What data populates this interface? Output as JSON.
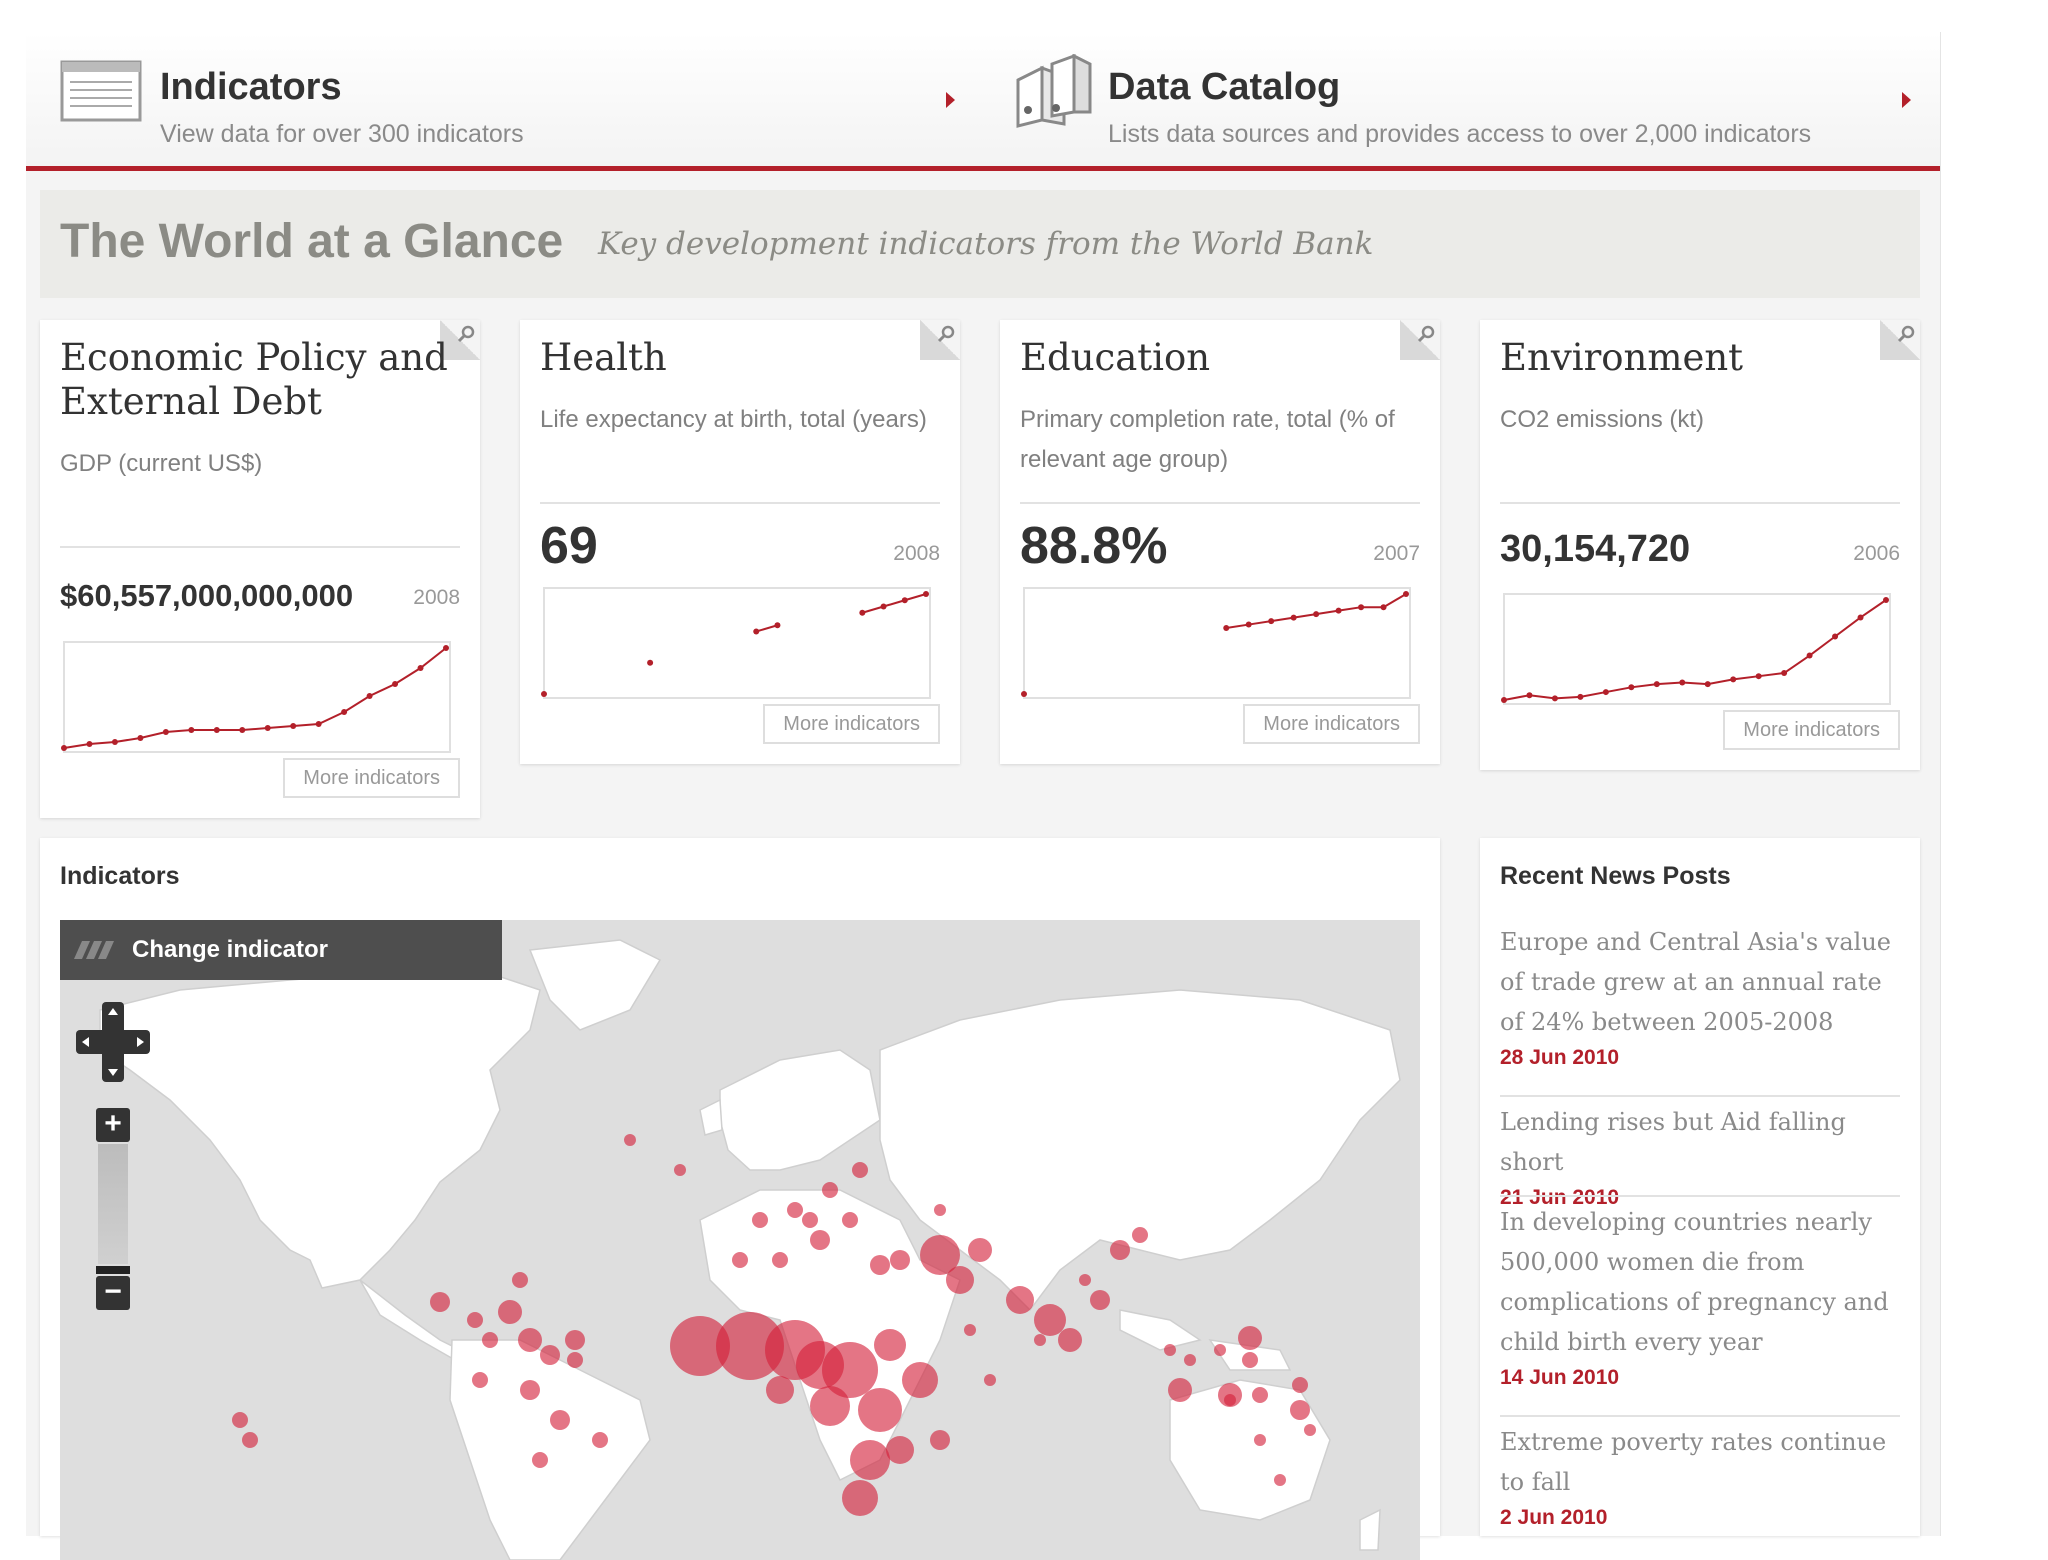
{
  "nav": {
    "indicators": {
      "title": "Indicators",
      "subtitle": "View data for over 300 indicators"
    },
    "catalog": {
      "title": "Data Catalog",
      "subtitle": "Lists data sources and provides access to over 2,000 indicators"
    },
    "accent": "#b3202a"
  },
  "glance": {
    "title": "The World at a Glance",
    "subtitle": "Key development indicators from the World Bank"
  },
  "cards": [
    {
      "title": "Economic Policy and External Debt",
      "indicator": "GDP (current US$)",
      "value": "$60,557,000,000,000",
      "year": "2008",
      "more": "More indicators",
      "series": [
        30,
        32,
        33,
        35,
        38,
        39,
        39,
        39,
        40,
        41,
        42,
        48,
        56,
        62,
        70,
        80
      ]
    },
    {
      "title": "Health",
      "indicator": "Life expectancy at birth, total (years)",
      "value": "69",
      "year": "2008",
      "more": "More indicators",
      "series": [
        53,
        null,
        null,
        null,
        null,
        58,
        null,
        null,
        null,
        null,
        63,
        64,
        null,
        null,
        null,
        66,
        67,
        68,
        69
      ]
    },
    {
      "title": "Education",
      "indicator": "Primary completion rate, total (% of relevant age group)",
      "value": "88.8%",
      "year": "2007",
      "more": "More indicators",
      "series": [
        60,
        null,
        null,
        null,
        null,
        null,
        null,
        null,
        null,
        79,
        80,
        81,
        82,
        83,
        84,
        85,
        85,
        88.8
      ]
    },
    {
      "title": "Environment",
      "indicator": "CO2 emissions (kt)",
      "value": "30,154,720",
      "year": "2006",
      "more": "More indicators",
      "series": [
        22.0,
        22.3,
        22.1,
        22.2,
        22.5,
        22.8,
        23.0,
        23.1,
        23.0,
        23.3,
        23.5,
        23.7,
        24.8,
        26.0,
        27.2,
        28.3
      ]
    }
  ],
  "indicators_panel": {
    "title": "Indicators",
    "change_label": "Change indicator"
  },
  "map_controls": {
    "zoom_in": "+",
    "zoom_out": "−"
  },
  "news": {
    "title": "Recent News Posts",
    "items": [
      {
        "headline": "Europe and Central Asia's value of trade grew at an annual rate of 24% between 2005-2008",
        "date": "28 Jun 2010"
      },
      {
        "headline": "Lending rises but Aid falling short",
        "date": "21 Jun 2010"
      },
      {
        "headline": "In developing countries nearly 500,000 women die from complications of pregnancy and child birth every year",
        "date": "14 Jun 2010"
      },
      {
        "headline": "Extreme poverty rates continue to fall",
        "date": "2 Jun 2010"
      }
    ]
  }
}
